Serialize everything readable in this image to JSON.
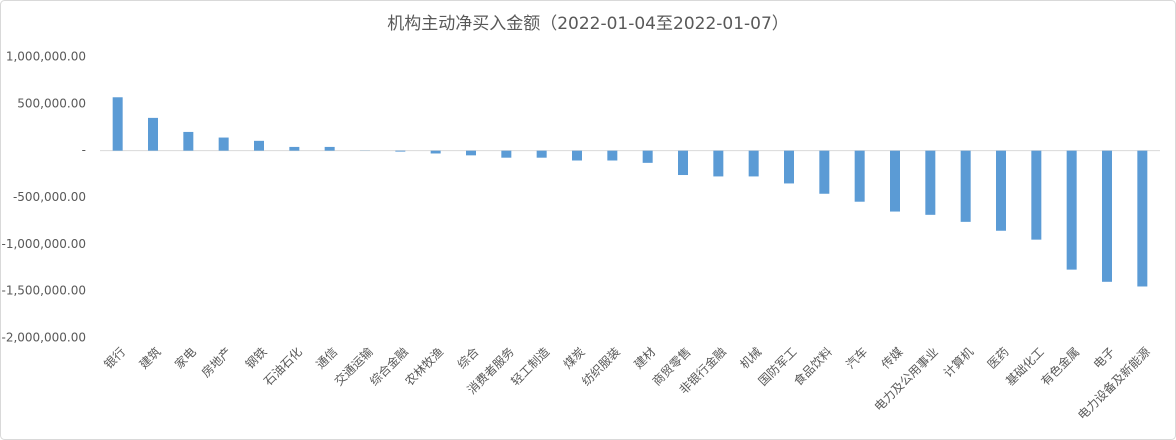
{
  "chart_data": {
    "type": "bar",
    "title": "机构主动净买入金额（2022-01-04至2022-01-07）",
    "categories": [
      "银行",
      "建筑",
      "家电",
      "房地产",
      "钢铁",
      "石油石化",
      "通信",
      "交通运输",
      "综合金融",
      "农林牧渔",
      "综合",
      "消费者服务",
      "轻工制造",
      "煤炭",
      "纺织服装",
      "建材",
      "商贸零售",
      "非银行金融",
      "机械",
      "国防军工",
      "食品饮料",
      "汽车",
      "传媒",
      "电力及公用事业",
      "计算机",
      "医药",
      "基础化工",
      "有色金属",
      "电子",
      "电力设备及新能源"
    ],
    "values": [
      570000,
      350000,
      200000,
      140000,
      105000,
      40000,
      40000,
      2000,
      -10000,
      -30000,
      -50000,
      -75000,
      -75000,
      -105000,
      -105000,
      -130000,
      -260000,
      -275000,
      -275000,
      -350000,
      -460000,
      -545000,
      -650000,
      -685000,
      -760000,
      -855000,
      -950000,
      -1270000,
      -1400000,
      -1450000
    ],
    "color": "#5b9bd5",
    "ylim": [
      -2000000,
      1000000
    ],
    "yticks": [
      {
        "value": -2000000,
        "label": "-2,000,000.00"
      },
      {
        "value": -1500000,
        "label": "-1,500,000.00"
      },
      {
        "value": -1000000,
        "label": "-1,000,000.00"
      },
      {
        "value": -500000,
        "label": "-500,000.00"
      },
      {
        "value": 0,
        "label": "-"
      },
      {
        "value": 500000,
        "label": "500,000.00"
      },
      {
        "value": 1000000,
        "label": "1,000,000.00"
      }
    ]
  }
}
